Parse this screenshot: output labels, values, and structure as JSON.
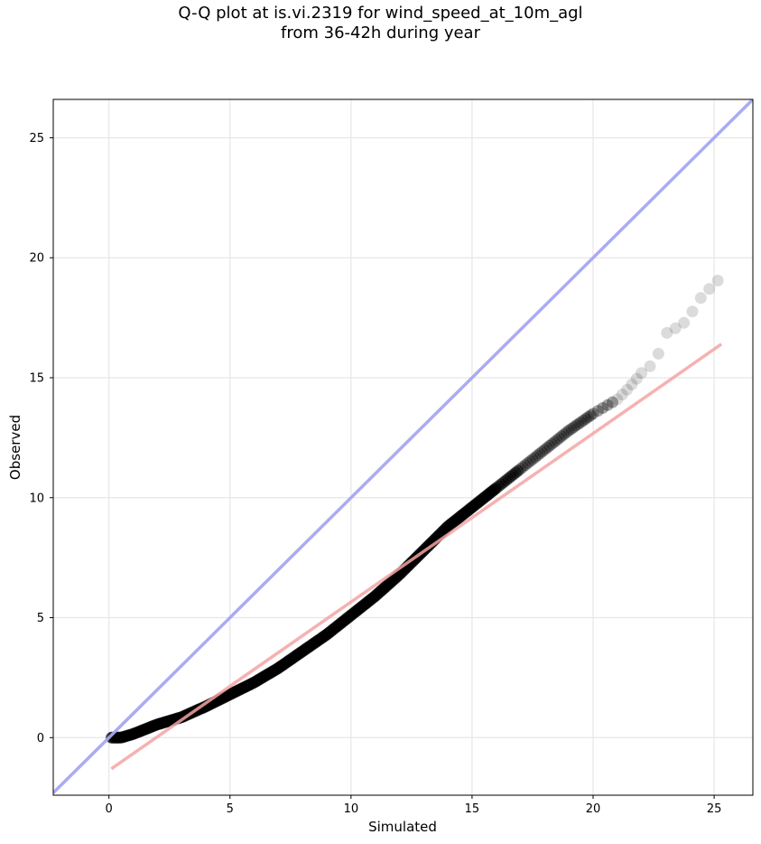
{
  "chart_data": {
    "type": "scatter",
    "title_lines": [
      "Q-Q plot at is.vi.2319 for wind_speed_at_10m_agl",
      "from 36-42h during year"
    ],
    "xlabel": "Simulated",
    "ylabel": "Observed",
    "xlim": [
      -2.3,
      26.6
    ],
    "ylim": [
      -2.4,
      26.6
    ],
    "xticks": [
      0,
      5,
      10,
      15,
      20,
      25
    ],
    "yticks": [
      0,
      5,
      10,
      15,
      20,
      25
    ],
    "grid": true,
    "points_color": "#000000",
    "quantile_curve": [
      [
        0.1,
        0.0
      ],
      [
        0.5,
        0.0
      ],
      [
        1.0,
        0.15
      ],
      [
        2.0,
        0.55
      ],
      [
        3.0,
        0.85
      ],
      [
        4.0,
        1.3
      ],
      [
        5.0,
        1.8
      ],
      [
        6.0,
        2.3
      ],
      [
        7.0,
        2.9
      ],
      [
        8.0,
        3.6
      ],
      [
        9.0,
        4.3
      ],
      [
        10.0,
        5.1
      ],
      [
        11.0,
        5.9
      ],
      [
        12.0,
        6.8
      ],
      [
        13.0,
        7.8
      ],
      [
        14.0,
        8.8
      ],
      [
        15.0,
        9.6
      ],
      [
        16.0,
        10.4
      ],
      [
        17.0,
        11.2
      ],
      [
        18.0,
        12.0
      ],
      [
        19.0,
        12.8
      ],
      [
        20.0,
        13.5
      ],
      [
        20.5,
        13.8
      ],
      [
        21.0,
        14.1
      ],
      [
        21.5,
        14.6
      ],
      [
        22.0,
        15.2
      ],
      [
        22.5,
        15.6
      ],
      [
        22.8,
        16.2
      ],
      [
        23.1,
        17.0
      ],
      [
        23.6,
        17.1
      ],
      [
        24.0,
        17.6
      ],
      [
        24.5,
        18.4
      ],
      [
        25.2,
        19.1
      ]
    ],
    "reference_line": {
      "color": "#a6a6f2",
      "points": [
        [
          -2.3,
          -2.3
        ],
        [
          26.6,
          26.6
        ]
      ]
    },
    "fit_line": {
      "color": "#f5a3a3",
      "points": [
        [
          0.1,
          -1.3
        ],
        [
          25.3,
          16.4
        ]
      ]
    }
  }
}
